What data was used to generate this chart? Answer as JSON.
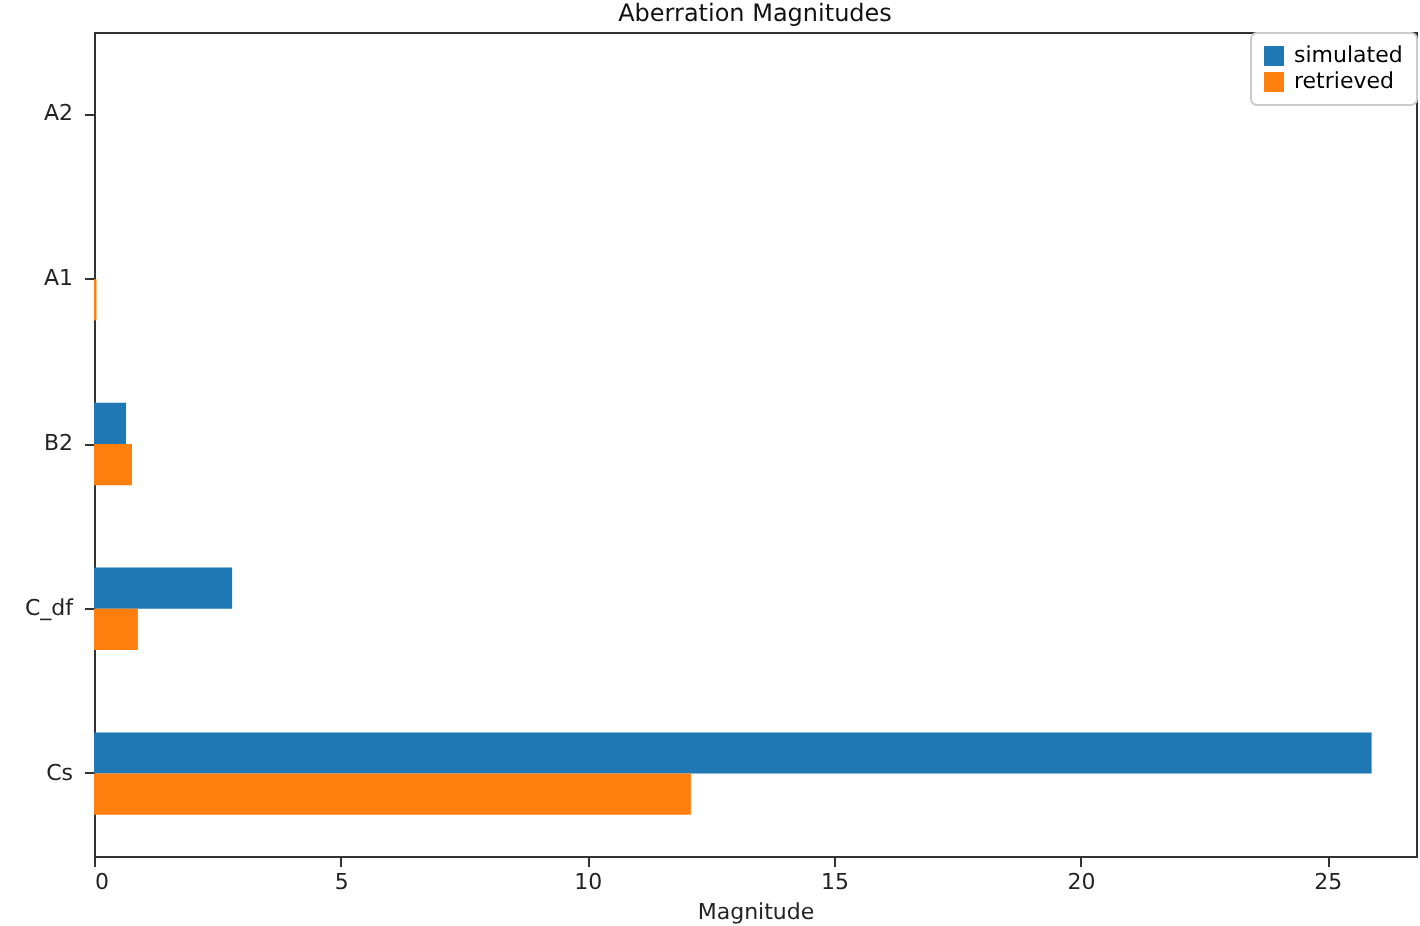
{
  "chart_data": {
    "type": "bar",
    "orientation": "horizontal",
    "title": "Aberration Magnitudes",
    "xlabel": "Magnitude",
    "categories": [
      "A2",
      "A1",
      "B2",
      "C_df",
      "Cs"
    ],
    "series": [
      {
        "name": "simulated",
        "color": "#1f77b4",
        "values": [
          0,
          0,
          0.65,
          2.8,
          25.9
        ]
      },
      {
        "name": "retrieved",
        "color": "#ff7f0e",
        "values": [
          0,
          0.05,
          0.77,
          0.89,
          12.1
        ]
      }
    ],
    "xlim": [
      0,
      26.8
    ],
    "xticks": [
      0,
      5,
      10,
      15,
      20,
      25
    ],
    "grid": false,
    "legend": "top right"
  }
}
